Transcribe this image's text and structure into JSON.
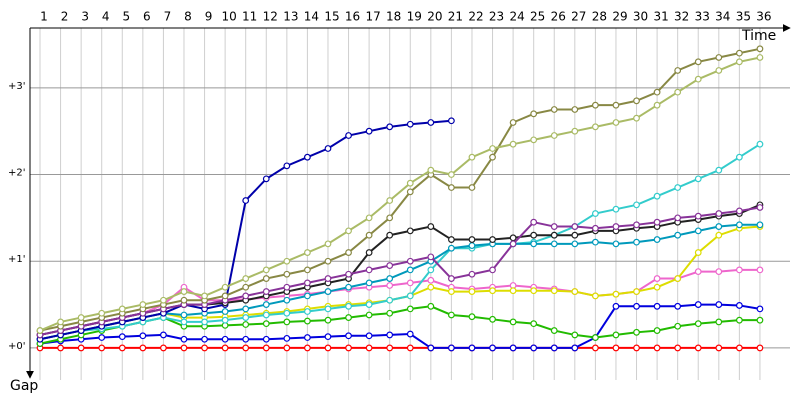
{
  "chart_data": {
    "type": "line",
    "x_label": "Time",
    "y_label": "Gap",
    "categories": [
      "1",
      "2",
      "3",
      "4",
      "5",
      "6",
      "7",
      "8",
      "9",
      "10",
      "11",
      "12",
      "13",
      "14",
      "15",
      "16",
      "17",
      "18",
      "19",
      "20",
      "21",
      "22",
      "23",
      "24",
      "25",
      "26",
      "27",
      "28",
      "29",
      "30",
      "31",
      "32",
      "33",
      "34",
      "35",
      "36"
    ],
    "ylim": [
      -0.37,
      3.69
    ],
    "yticks": [
      {
        "value": 0,
        "label": "+0'"
      },
      {
        "value": 1,
        "label": "+1'"
      },
      {
        "value": 2,
        "label": "+2'"
      },
      {
        "value": 3,
        "label": "+3'"
      }
    ],
    "grid": true,
    "series": [
      {
        "color": "#ff0000",
        "values": [
          0,
          0,
          0,
          0,
          0,
          0,
          0,
          0,
          0,
          0,
          0,
          0,
          0,
          0,
          0,
          0,
          0,
          0,
          0,
          0,
          0,
          0,
          0,
          0,
          0,
          0,
          0,
          0,
          0,
          0,
          0,
          0,
          0,
          0,
          0,
          0
        ]
      },
      {
        "color": "#0000dd",
        "values": [
          0.05,
          0.08,
          0.1,
          0.12,
          0.13,
          0.14,
          0.15,
          0.1,
          0.1,
          0.1,
          0.1,
          0.1,
          0.11,
          0.12,
          0.13,
          0.14,
          0.14,
          0.15,
          0.16,
          0,
          0,
          0,
          0,
          0,
          0,
          0,
          0,
          0.12,
          0.48,
          0.48,
          0.48,
          0.48,
          0.5,
          0.5,
          0.49,
          0.45
        ]
      },
      {
        "color": "#22bb00",
        "values": [
          0.05,
          0.1,
          0.15,
          0.2,
          0.25,
          0.3,
          0.35,
          0.25,
          0.25,
          0.26,
          0.27,
          0.28,
          0.3,
          0.31,
          0.32,
          0.35,
          0.38,
          0.4,
          0.45,
          0.48,
          0.38,
          0.36,
          0.33,
          0.3,
          0.28,
          0.2,
          0.15,
          0.12,
          0.15,
          0.18,
          0.2,
          0.25,
          0.28,
          0.3,
          0.32,
          0.32
        ]
      },
      {
        "color": "#ee66cc",
        "values": [
          0.15,
          0.2,
          0.25,
          0.3,
          0.35,
          0.4,
          0.5,
          0.7,
          0.55,
          0.55,
          0.56,
          0.58,
          0.6,
          0.62,
          0.65,
          0.68,
          0.7,
          0.72,
          0.75,
          0.78,
          0.7,
          0.68,
          0.7,
          0.72,
          0.7,
          0.68,
          0.65,
          0.6,
          0.62,
          0.65,
          0.8,
          0.8,
          0.88,
          0.88,
          0.9,
          0.9
        ]
      },
      {
        "color": "#dddd00",
        "values": [
          0.1,
          0.15,
          0.2,
          0.25,
          0.3,
          0.35,
          0.4,
          0.35,
          0.35,
          0.36,
          0.38,
          0.4,
          0.42,
          0.45,
          0.48,
          0.5,
          0.52,
          0.55,
          0.6,
          0.7,
          0.65,
          0.65,
          0.66,
          0.66,
          0.66,
          0.66,
          0.65,
          0.6,
          0.62,
          0.65,
          0.7,
          0.8,
          1.1,
          1.3,
          1.38,
          1.4
        ]
      },
      {
        "color": "#33cccc",
        "values": [
          0.1,
          0.15,
          0.2,
          0.22,
          0.25,
          0.3,
          0.35,
          0.3,
          0.3,
          0.32,
          0.35,
          0.38,
          0.4,
          0.42,
          0.45,
          0.48,
          0.5,
          0.55,
          0.6,
          0.9,
          1.15,
          1.15,
          1.2,
          1.2,
          1.22,
          1.3,
          1.4,
          1.55,
          1.6,
          1.65,
          1.75,
          1.85,
          1.95,
          2.05,
          2.2,
          2.35
        ]
      },
      {
        "color": "#0099bb",
        "values": [
          0.1,
          0.15,
          0.2,
          0.25,
          0.3,
          0.35,
          0.4,
          0.38,
          0.4,
          0.42,
          0.45,
          0.5,
          0.55,
          0.6,
          0.65,
          0.7,
          0.75,
          0.8,
          0.9,
          1.0,
          1.15,
          1.18,
          1.2,
          1.2,
          1.2,
          1.2,
          1.2,
          1.22,
          1.2,
          1.22,
          1.25,
          1.3,
          1.35,
          1.4,
          1.42,
          1.42
        ]
      },
      {
        "color": "#0000aa",
        "values": [
          0.1,
          0.15,
          0.2,
          0.25,
          0.3,
          0.35,
          0.4,
          0.5,
          0.45,
          0.5,
          1.7,
          1.95,
          2.1,
          2.2,
          2.3,
          2.45,
          2.5,
          2.55,
          2.58,
          2.6,
          2.62,
          null,
          null,
          null,
          null,
          null,
          null,
          null,
          null,
          null,
          null,
          null,
          null,
          null,
          null,
          null
        ]
      },
      {
        "color": "#222222",
        "values": [
          0.15,
          0.2,
          0.25,
          0.3,
          0.35,
          0.4,
          0.45,
          0.5,
          0.5,
          0.52,
          0.55,
          0.6,
          0.65,
          0.7,
          0.75,
          0.8,
          1.1,
          1.3,
          1.35,
          1.4,
          1.25,
          1.25,
          1.25,
          1.27,
          1.3,
          1.3,
          1.3,
          1.35,
          1.35,
          1.38,
          1.4,
          1.45,
          1.48,
          1.52,
          1.55,
          1.65
        ]
      },
      {
        "color": "#883399",
        "values": [
          0.15,
          0.2,
          0.25,
          0.3,
          0.35,
          0.4,
          0.45,
          0.5,
          0.5,
          0.55,
          0.6,
          0.65,
          0.7,
          0.75,
          0.8,
          0.85,
          0.9,
          0.95,
          1.0,
          1.05,
          0.8,
          0.85,
          0.9,
          1.2,
          1.45,
          1.4,
          1.4,
          1.38,
          1.4,
          1.42,
          1.45,
          1.5,
          1.52,
          1.55,
          1.58,
          1.62
        ]
      },
      {
        "color": "#888844",
        "values": [
          0.2,
          0.25,
          0.3,
          0.35,
          0.4,
          0.45,
          0.5,
          0.55,
          0.55,
          0.6,
          0.7,
          0.8,
          0.85,
          0.9,
          1.0,
          1.1,
          1.3,
          1.5,
          1.8,
          2.0,
          1.85,
          1.85,
          2.2,
          2.6,
          2.7,
          2.75,
          2.75,
          2.8,
          2.8,
          2.85,
          2.95,
          3.2,
          3.3,
          3.35,
          3.4,
          3.45
        ]
      },
      {
        "color": "#aabb66",
        "values": [
          0.2,
          0.3,
          0.35,
          0.4,
          0.45,
          0.5,
          0.55,
          0.65,
          0.6,
          0.7,
          0.8,
          0.9,
          1.0,
          1.1,
          1.2,
          1.35,
          1.5,
          1.7,
          1.9,
          2.05,
          2.0,
          2.2,
          2.3,
          2.35,
          2.4,
          2.45,
          2.5,
          2.55,
          2.6,
          2.65,
          2.8,
          2.95,
          3.1,
          3.2,
          3.3,
          3.35
        ]
      }
    ]
  }
}
